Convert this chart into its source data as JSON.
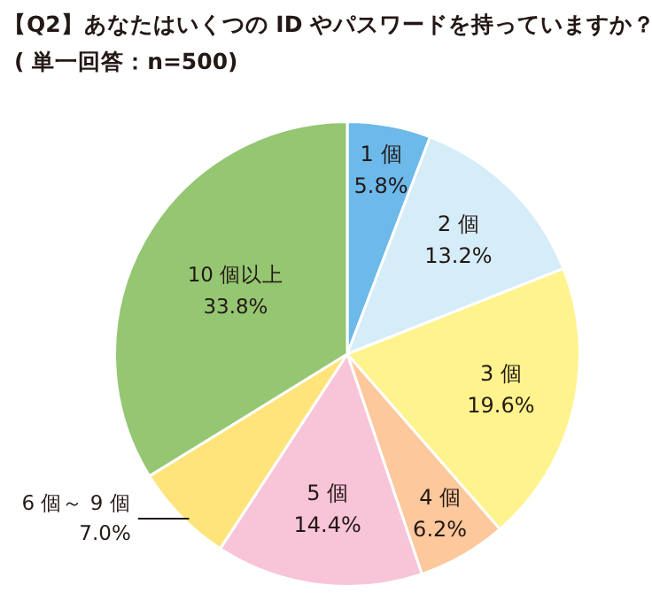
{
  "chart_data": {
    "type": "pie",
    "title": "【Q2】あなたはいくつの ID やパスワードを持っていますか？",
    "subtitle": "( 単一回答：n=500)",
    "categories": [
      "1 個",
      "2 個",
      "3 個",
      "4 個",
      "5 個",
      "6 個～ 9 個",
      "10 個以上"
    ],
    "values": [
      5.8,
      13.2,
      19.6,
      6.2,
      14.4,
      7.0,
      33.8
    ],
    "value_labels": [
      "5.8%",
      "13.2%",
      "19.6%",
      "6.2%",
      "14.4%",
      "7.0%",
      "33.8%"
    ],
    "colors": [
      "#6cb9ea",
      "#d5ecf9",
      "#fff38e",
      "#fdc89c",
      "#f7c4d8",
      "#ffe47c",
      "#95c672"
    ],
    "legend": false
  }
}
